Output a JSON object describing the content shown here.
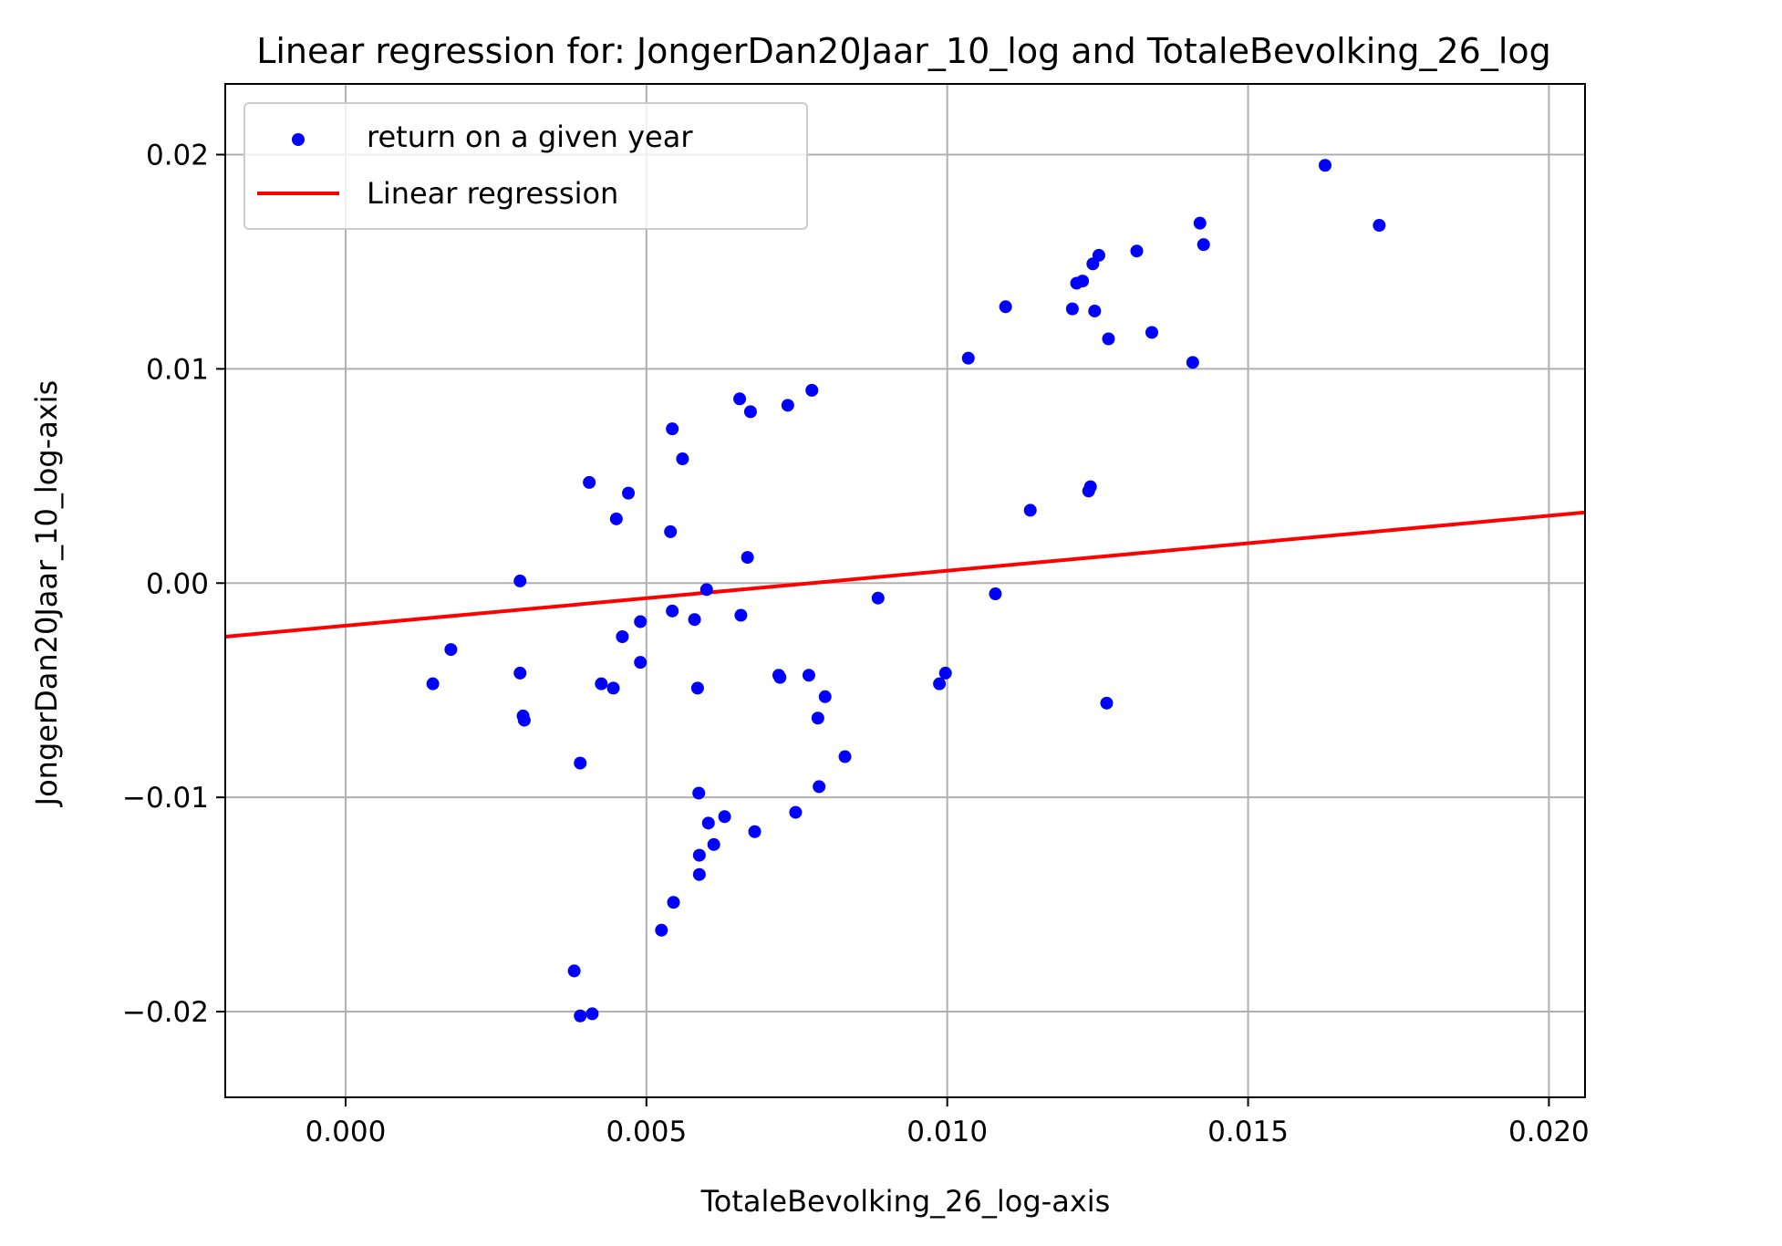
{
  "chart_data": {
    "type": "scatter",
    "title": "Linear regression for: JongerDan20Jaar_10_log and TotaleBevolking_26_log",
    "xlabel": "TotaleBevolking_26_log-axis",
    "ylabel": "JongerDan20Jaar_10_log-axis",
    "xlim": [
      -0.002,
      0.0206
    ],
    "ylim": [
      -0.024,
      0.0233
    ],
    "xticks": [
      0.0,
      0.005,
      0.01,
      0.015,
      0.02
    ],
    "xtick_labels": [
      "0.000",
      "0.005",
      "0.010",
      "0.015",
      "0.020"
    ],
    "yticks": [
      -0.02,
      -0.01,
      0.0,
      0.01,
      0.02
    ],
    "ytick_labels": [
      "−0.02",
      "−0.01",
      "0.00",
      "0.01",
      "0.02"
    ],
    "grid": true,
    "legend_position": "top-left",
    "series": [
      {
        "name": "return on a given year",
        "kind": "scatter",
        "color": "#0000ff",
        "points": [
          [
            0.00145,
            -0.0047
          ],
          [
            0.00175,
            -0.0031
          ],
          [
            0.0029,
            -0.0042
          ],
          [
            0.0029,
            0.0001
          ],
          [
            0.00295,
            -0.0062
          ],
          [
            0.00297,
            -0.0064
          ],
          [
            0.0038,
            -0.0181
          ],
          [
            0.0039,
            -0.0202
          ],
          [
            0.0039,
            -0.0084
          ],
          [
            0.0041,
            -0.0201
          ],
          [
            0.00405,
            0.0047
          ],
          [
            0.00425,
            -0.0047
          ],
          [
            0.00445,
            -0.0049
          ],
          [
            0.0045,
            0.003
          ],
          [
            0.0046,
            -0.0025
          ],
          [
            0.0047,
            0.0042
          ],
          [
            0.0049,
            -0.0018
          ],
          [
            0.0049,
            -0.0037
          ],
          [
            0.00525,
            -0.0162
          ],
          [
            0.0054,
            0.0024
          ],
          [
            0.00543,
            0.0072
          ],
          [
            0.00543,
            -0.0013
          ],
          [
            0.00545,
            -0.0149
          ],
          [
            0.0056,
            0.0058
          ],
          [
            0.0058,
            -0.0017
          ],
          [
            0.00585,
            -0.0049
          ],
          [
            0.00587,
            -0.0098
          ],
          [
            0.00588,
            -0.0127
          ],
          [
            0.00588,
            -0.0136
          ],
          [
            0.006,
            -0.0003
          ],
          [
            0.00603,
            -0.0112
          ],
          [
            0.00612,
            -0.0122
          ],
          [
            0.0063,
            -0.0109
          ],
          [
            0.00655,
            0.0086
          ],
          [
            0.00657,
            -0.0015
          ],
          [
            0.00668,
            0.0012
          ],
          [
            0.00673,
            0.008
          ],
          [
            0.0068,
            -0.0116
          ],
          [
            0.00735,
            0.0083
          ],
          [
            0.00748,
            -0.0107
          ],
          [
            0.0072,
            -0.0043
          ],
          [
            0.00722,
            -0.0044
          ],
          [
            0.0077,
            -0.0043
          ],
          [
            0.00775,
            0.009
          ],
          [
            0.00785,
            -0.0063
          ],
          [
            0.00787,
            -0.0095
          ],
          [
            0.00797,
            -0.0053
          ],
          [
            0.0083,
            -0.0081
          ],
          [
            0.00885,
            -0.0007
          ],
          [
            0.00987,
            -0.0047
          ],
          [
            0.00997,
            -0.0042
          ],
          [
            0.01035,
            0.0105
          ],
          [
            0.0108,
            -0.0005
          ],
          [
            0.01097,
            0.0129
          ],
          [
            0.01138,
            0.0034
          ],
          [
            0.01208,
            0.0128
          ],
          [
            0.01215,
            0.014
          ],
          [
            0.01225,
            0.0141
          ],
          [
            0.01235,
            0.0043
          ],
          [
            0.01238,
            0.0045
          ],
          [
            0.01242,
            0.0149
          ],
          [
            0.01245,
            0.0127
          ],
          [
            0.01252,
            0.0153
          ],
          [
            0.01265,
            -0.0056
          ],
          [
            0.01268,
            0.0114
          ],
          [
            0.01315,
            0.0155
          ],
          [
            0.0134,
            0.0117
          ],
          [
            0.01408,
            0.0103
          ],
          [
            0.0142,
            0.0168
          ],
          [
            0.01426,
            0.0158
          ],
          [
            0.01628,
            0.0195
          ],
          [
            0.01718,
            0.0167
          ]
        ]
      },
      {
        "name": "Linear regression",
        "kind": "line",
        "color": "#ff0000",
        "x": [
          -0.002,
          0.0206
        ],
        "y": [
          -0.0025,
          0.0033
        ]
      }
    ]
  }
}
